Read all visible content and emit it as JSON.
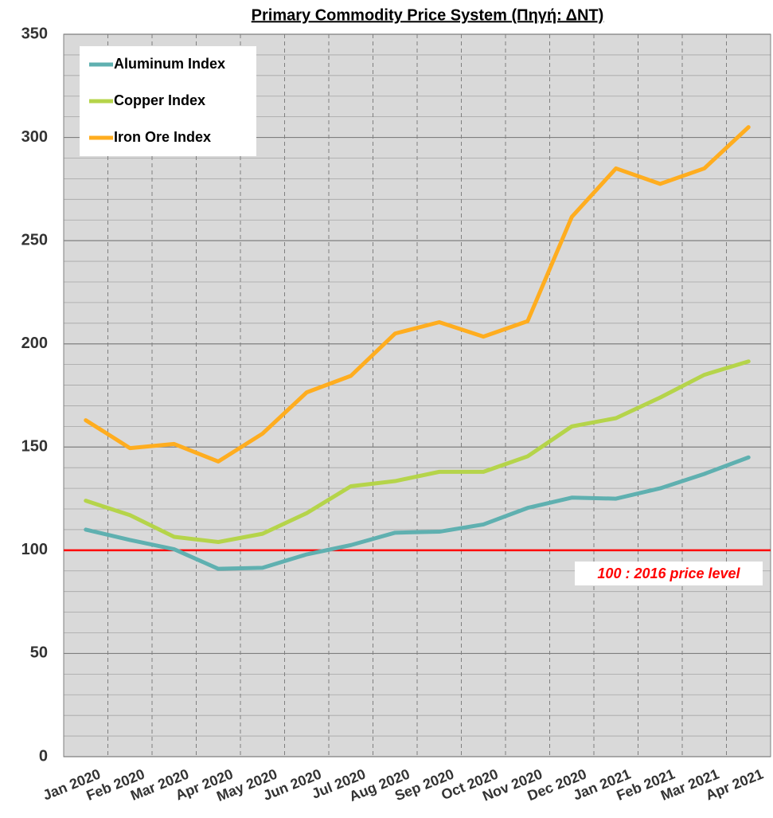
{
  "chart_data": {
    "type": "line",
    "title": "Primary Commodity Price System (Πηγή: ΔΝΤ)",
    "categories": [
      "Jan 2020",
      "Feb 2020",
      "Mar 2020",
      "Apr 2020",
      "May 2020",
      "Jun 2020",
      "Jul 2020",
      "Aug 2020",
      "Sep 2020",
      "Oct 2020",
      "Nov 2020",
      "Dec 2020",
      "Jan 2021",
      "Feb 2021",
      "Mar 2021",
      "Apr 2021"
    ],
    "series": [
      {
        "name": "Aluminum Index",
        "color": "#5fb0b0",
        "values": [
          110,
          105,
          100.5,
          91,
          91.5,
          98,
          102.5,
          108.5,
          109,
          112.5,
          120.5,
          125.5,
          125,
          130,
          137,
          145
        ]
      },
      {
        "name": "Copper Index",
        "color": "#b5d44a",
        "values": [
          124,
          117,
          106.5,
          104,
          108,
          118,
          131,
          133.5,
          138,
          138,
          145.5,
          160,
          164,
          174,
          185,
          191.5
        ]
      },
      {
        "name": "Iron Ore Index",
        "color": "#ffad1f",
        "values": [
          163,
          149.5,
          151.5,
          143,
          156.5,
          176.5,
          184.5,
          205,
          210.5,
          203.5,
          211,
          261.5,
          285,
          277.5,
          285,
          305
        ]
      }
    ],
    "reference_line": {
      "value": 100,
      "label": "100 : 2016 price level",
      "color": "#ff0000"
    },
    "ylim": [
      0,
      350
    ],
    "yticks": [
      0,
      50,
      100,
      150,
      200,
      250,
      300,
      350
    ],
    "grid": true,
    "legend": "top-left"
  }
}
